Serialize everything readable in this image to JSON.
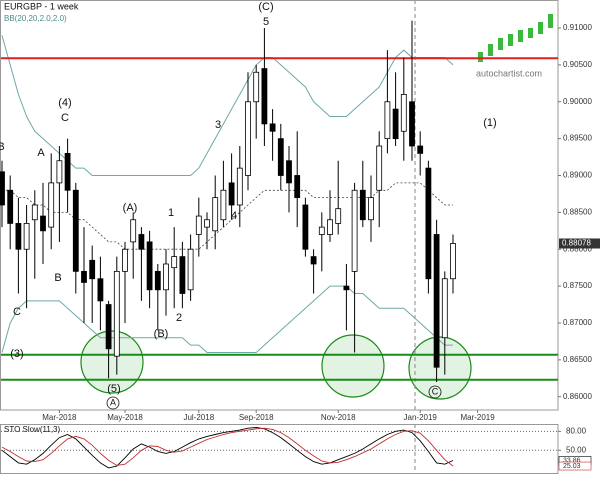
{
  "brand": "autochartist.com",
  "chart_data": [
    {
      "type": "candlestick",
      "title": "EURGBP - 1 week",
      "categories": [
        null,
        null,
        null,
        null,
        null,
        null,
        null,
        "Mar-2018",
        null,
        null,
        null,
        null,
        null,
        null,
        null,
        "May-2018",
        null,
        null,
        null,
        null,
        null,
        null,
        null,
        null,
        "Jul-2018",
        null,
        null,
        null,
        null,
        null,
        null,
        "Sep-2018",
        null,
        null,
        null,
        null,
        null,
        null,
        null,
        null,
        null,
        "Nov-2018",
        null,
        null,
        null,
        null,
        null,
        null,
        null,
        null,
        null,
        "Jan-2019",
        null,
        null,
        null,
        null,
        null,
        null,
        "Mar-2019",
        null,
        null,
        null,
        null,
        null,
        null,
        null,
        null,
        null
      ],
      "open": [
        0.8905,
        0.888,
        0.8835,
        0.88,
        0.884,
        0.8845,
        0.883,
        0.889,
        0.893,
        0.888,
        0.877,
        0.8785,
        0.876,
        0.8725,
        0.8655,
        0.877,
        0.881,
        0.882,
        0.881,
        0.877,
        0.8745,
        0.8775,
        0.879,
        0.8745,
        0.882,
        0.883,
        0.8825,
        0.884,
        0.889,
        0.886,
        0.89,
        0.9,
        0.9045,
        0.897,
        0.895,
        0.892,
        0.89,
        0.886,
        0.879,
        0.882,
        0.882,
        0.8835,
        0.875,
        0.877,
        0.888,
        0.884,
        0.888,
        0.895,
        0.899,
        0.896,
        0.9,
        0.894,
        0.891,
        0.882,
        0.868,
        0.876,
        null,
        null,
        null,
        null,
        null,
        null,
        null,
        null,
        null,
        null,
        null,
        null
      ],
      "high": [
        0.892,
        0.89,
        0.887,
        0.886,
        0.888,
        0.889,
        0.893,
        0.894,
        0.895,
        0.889,
        0.883,
        0.8805,
        0.879,
        0.873,
        0.879,
        0.881,
        0.885,
        0.883,
        0.8825,
        0.878,
        0.88,
        0.883,
        0.881,
        0.882,
        0.887,
        0.885,
        0.89,
        0.892,
        0.893,
        0.894,
        0.904,
        0.905,
        0.91,
        0.899,
        0.897,
        0.894,
        0.896,
        0.887,
        0.88,
        0.885,
        0.888,
        0.892,
        0.878,
        0.889,
        0.892,
        0.89,
        0.896,
        0.907,
        0.904,
        0.906,
        0.911,
        0.896,
        0.892,
        0.884,
        0.877,
        0.882,
        null,
        null,
        null,
        null,
        null,
        null,
        null,
        null,
        null,
        null,
        null,
        null
      ],
      "low": [
        0.883,
        0.88,
        0.874,
        0.872,
        0.876,
        0.878,
        0.88,
        0.881,
        0.885,
        0.874,
        0.87,
        0.87,
        0.869,
        0.8625,
        0.863,
        0.87,
        0.876,
        0.873,
        0.872,
        0.869,
        0.871,
        0.872,
        0.872,
        0.873,
        0.879,
        0.88,
        0.88,
        0.883,
        0.884,
        0.883,
        0.888,
        0.895,
        0.894,
        0.892,
        0.888,
        0.885,
        0.883,
        0.879,
        0.874,
        0.877,
        0.881,
        0.882,
        0.869,
        0.866,
        0.883,
        0.881,
        0.883,
        0.893,
        0.894,
        0.892,
        0.892,
        0.89,
        0.874,
        0.862,
        0.863,
        0.874,
        null,
        null,
        null,
        null,
        null,
        null,
        null,
        null,
        null,
        null,
        null,
        null
      ],
      "close": [
        0.886,
        0.8835,
        0.88,
        0.8835,
        0.886,
        0.8825,
        0.889,
        0.892,
        0.888,
        0.877,
        0.8755,
        0.876,
        0.873,
        0.8665,
        0.877,
        0.88,
        0.884,
        0.88,
        0.8745,
        0.8745,
        0.878,
        0.879,
        0.874,
        0.88,
        0.8845,
        0.884,
        0.887,
        0.888,
        0.886,
        0.891,
        0.9,
        0.904,
        0.897,
        0.896,
        0.89,
        0.889,
        0.887,
        0.88,
        0.878,
        0.883,
        0.884,
        0.8855,
        0.8745,
        0.888,
        0.884,
        0.887,
        0.894,
        0.9,
        0.895,
        0.901,
        0.894,
        0.893,
        0.876,
        0.864,
        0.876,
        0.88078,
        null,
        null,
        null,
        null,
        null,
        null,
        null,
        null,
        null,
        null,
        null,
        null
      ],
      "up_color": "#ffffff",
      "down_color": "#000000",
      "bands": {
        "name": "BB(20,20,2.0,2.0)",
        "color": "#6fa8a8",
        "upper": [
          0.909,
          0.905,
          0.901,
          0.898,
          0.896,
          0.895,
          0.894,
          0.893,
          0.892,
          0.891,
          0.891,
          0.89,
          0.89,
          0.89,
          0.89,
          0.89,
          0.89,
          0.89,
          0.89,
          0.89,
          0.89,
          0.89,
          0.89,
          0.89,
          0.891,
          0.893,
          0.895,
          0.897,
          0.899,
          0.901,
          0.903,
          0.905,
          0.906,
          0.906,
          0.905,
          0.904,
          0.903,
          0.902,
          0.9,
          0.899,
          0.898,
          0.898,
          0.898,
          0.899,
          0.9,
          0.901,
          0.902,
          0.904,
          0.906,
          0.907,
          0.906,
          0.906,
          0.906,
          0.906,
          0.906,
          0.905,
          null,
          null,
          null,
          null,
          null,
          null,
          null,
          null,
          null,
          null,
          null,
          null
        ],
        "middle": [
          0.888,
          0.888,
          0.887,
          0.887,
          0.886,
          0.886,
          0.885,
          0.885,
          0.885,
          0.884,
          0.884,
          0.883,
          0.882,
          0.881,
          0.881,
          0.88,
          0.88,
          0.88,
          0.88,
          0.88,
          0.88,
          0.88,
          0.88,
          0.88,
          0.88,
          0.881,
          0.882,
          0.883,
          0.884,
          0.885,
          0.886,
          0.887,
          0.888,
          0.888,
          0.888,
          0.888,
          0.888,
          0.888,
          0.887,
          0.887,
          0.887,
          0.887,
          0.887,
          0.887,
          0.887,
          0.887,
          0.888,
          0.888,
          0.889,
          0.889,
          0.889,
          0.889,
          0.888,
          0.887,
          0.886,
          0.886,
          null,
          null,
          null,
          null,
          null,
          null,
          null,
          null,
          null,
          null,
          null,
          null
        ],
        "lower": [
          0.866,
          0.87,
          0.872,
          0.873,
          0.873,
          0.873,
          0.873,
          0.873,
          0.872,
          0.871,
          0.87,
          0.869,
          0.868,
          0.868,
          0.868,
          0.868,
          0.868,
          0.868,
          0.868,
          0.868,
          0.868,
          0.868,
          0.868,
          0.867,
          0.867,
          0.866,
          0.866,
          0.866,
          0.866,
          0.866,
          0.866,
          0.866,
          0.867,
          0.868,
          0.869,
          0.87,
          0.871,
          0.872,
          0.873,
          0.874,
          0.875,
          0.875,
          0.875,
          0.874,
          0.874,
          0.873,
          0.872,
          0.872,
          0.872,
          0.872,
          0.871,
          0.87,
          0.869,
          0.868,
          0.867,
          0.867,
          null,
          null,
          null,
          null,
          null,
          null,
          null,
          null,
          null,
          null,
          null,
          null
        ]
      },
      "levels": [
        {
          "value": 0.9059,
          "color": "#e02020"
        },
        {
          "value": 0.8657,
          "color": "#1a8a1a"
        },
        {
          "value": 0.8623,
          "color": "#1a8a1a"
        }
      ],
      "ylim": [
        0.8582,
        0.9138
      ],
      "yticks": [
        {
          "value": 0.86,
          "label": "0.86000"
        },
        {
          "value": 0.865,
          "label": "0.86500"
        },
        {
          "value": 0.87,
          "label": "0.87000"
        },
        {
          "value": 0.875,
          "label": "0.87500"
        },
        {
          "value": 0.88,
          "label": "0.88000"
        },
        {
          "value": 0.885,
          "label": "0.88500"
        },
        {
          "value": 0.89,
          "label": "0.89000"
        },
        {
          "value": 0.895,
          "label": "0.89500"
        },
        {
          "value": 0.9,
          "label": "0.90000"
        },
        {
          "value": 0.905,
          "label": "0.90500"
        },
        {
          "value": 0.91,
          "label": "0.91000"
        }
      ],
      "annotations": [
        "B",
        "A",
        "(4)",
        "C",
        "B",
        "C",
        "(3)",
        "(5)",
        "A",
        "(A)",
        "(B)",
        "1",
        "2",
        "3",
        "4",
        "(C)",
        "5",
        "(1)",
        "C"
      ]
    },
    {
      "type": "line",
      "title": "STO Slow(11,3)",
      "series": [
        {
          "color": "#000000",
          "values": [
            50,
            40,
            30,
            28,
            35,
            45,
            58,
            70,
            75,
            68,
            55,
            42,
            30,
            22,
            25,
            38,
            52,
            60,
            55,
            48,
            45,
            48,
            55,
            62,
            68,
            72,
            75,
            78,
            80,
            82,
            85,
            86,
            84,
            78,
            70,
            60,
            50,
            40,
            32,
            28,
            30,
            35,
            40,
            45,
            52,
            60,
            68,
            75,
            80,
            82,
            78,
            65,
            48,
            30,
            28,
            33.86,
            null,
            null,
            null,
            null,
            null,
            null,
            null,
            null,
            null,
            null,
            null,
            null
          ]
        },
        {
          "color": "#c03030",
          "values": [
            55,
            48,
            40,
            33,
            32,
            35,
            45,
            57,
            68,
            72,
            68,
            58,
            45,
            34,
            26,
            28,
            38,
            50,
            57,
            56,
            50,
            47,
            49,
            55,
            61,
            67,
            71,
            75,
            78,
            80,
            82,
            84,
            85,
            83,
            78,
            70,
            60,
            50,
            41,
            33,
            30,
            31,
            35,
            40,
            46,
            52,
            60,
            68,
            75,
            80,
            81,
            77,
            65,
            50,
            35,
            25.03,
            null,
            null,
            null,
            null,
            null,
            null,
            null,
            null,
            null,
            null,
            null,
            null
          ]
        }
      ],
      "ylim": [
        14,
        90
      ],
      "yticks": [
        {
          "value": 80,
          "label": "80.00"
        },
        {
          "value": 50,
          "label": "50.00"
        }
      ]
    }
  ]
}
